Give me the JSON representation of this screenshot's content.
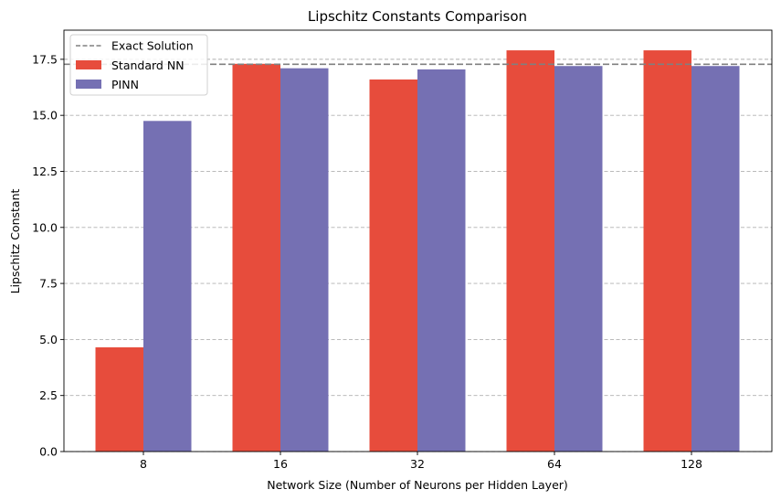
{
  "chart_data": {
    "type": "bar",
    "title": "Lipschitz Constants Comparison",
    "xlabel": "Network Size (Number of Neurons per Hidden Layer)",
    "ylabel": "Lipschitz Constant",
    "categories": [
      "8",
      "16",
      "32",
      "64",
      "128"
    ],
    "series": [
      {
        "name": "Standard NN",
        "color": "#E74C3C",
        "values": [
          4.65,
          17.3,
          16.6,
          17.9,
          17.9
        ]
      },
      {
        "name": "PINN",
        "color": "#7570B3",
        "values": [
          14.75,
          17.1,
          17.05,
          17.2,
          17.2
        ]
      }
    ],
    "reference_line": {
      "name": "Exact Solution",
      "value": 17.28,
      "color": "#808080",
      "style": "dashed"
    },
    "ylim": [
      0,
      18.8
    ],
    "yticks": [
      "0.0",
      "2.5",
      "5.0",
      "7.5",
      "10.0",
      "12.5",
      "15.0",
      "17.5"
    ],
    "grid": "y-dashed",
    "legend_position": "top-left"
  }
}
